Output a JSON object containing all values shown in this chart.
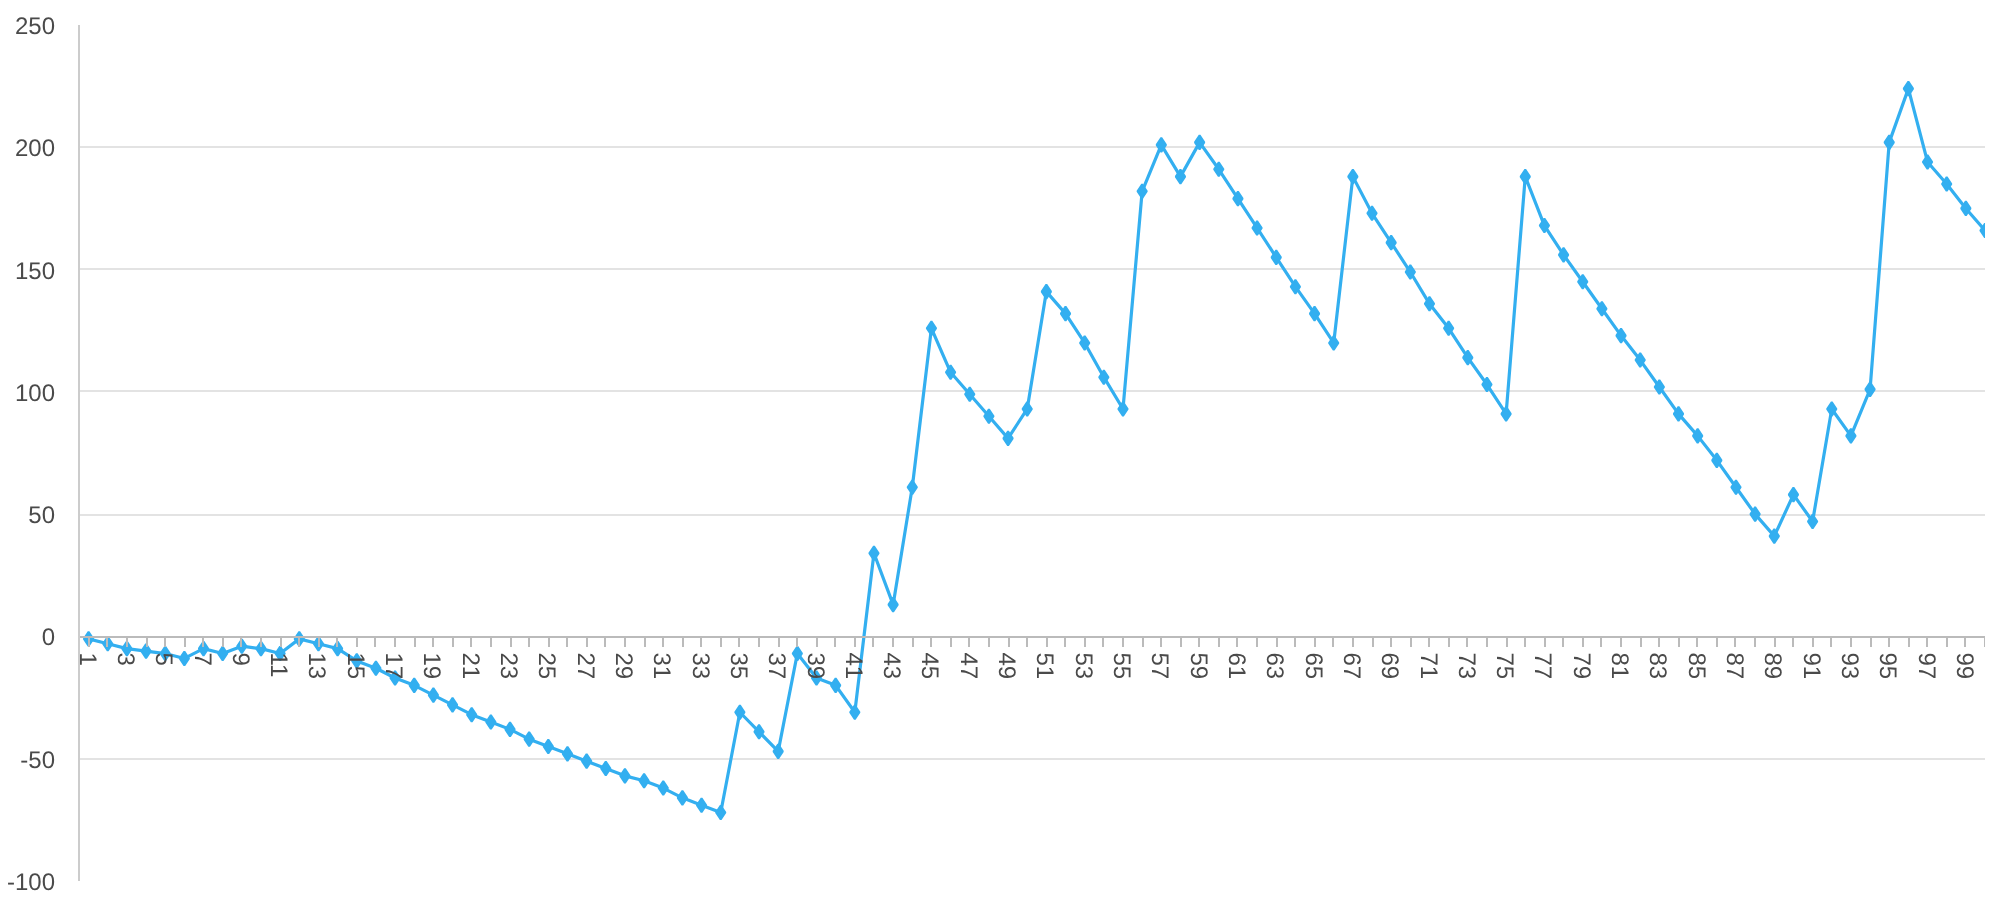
{
  "chart_data": {
    "type": "line",
    "categories": [
      "1",
      null,
      "3",
      null,
      "5",
      null,
      "7",
      null,
      "9",
      null,
      "11",
      null,
      "13",
      null,
      "15",
      null,
      "17",
      null,
      "19",
      null,
      "21",
      null,
      "23",
      null,
      "25",
      null,
      "27",
      null,
      "29",
      null,
      "31",
      null,
      "33",
      null,
      "35",
      null,
      "37",
      null,
      "39",
      null,
      "41",
      null,
      "43",
      null,
      "45",
      null,
      "47",
      null,
      "49",
      null,
      "51",
      null,
      "53",
      null,
      "55",
      null,
      "57",
      null,
      "59",
      null,
      "61",
      null,
      "63",
      null,
      "65",
      null,
      "67",
      null,
      "69",
      null,
      "71",
      null,
      "73",
      null,
      "75",
      null,
      "77",
      null,
      "79",
      null,
      "81",
      null,
      "83",
      null,
      "85",
      null,
      "87",
      null,
      "89",
      null,
      "91",
      null,
      "93",
      null,
      "95",
      null,
      "97",
      null,
      "99",
      null
    ],
    "series": [
      {
        "color": "#33aff0",
        "values": [
          -1,
          -3,
          -5,
          -6,
          -7,
          -9,
          -5,
          -7,
          -4,
          -5,
          -7,
          -1,
          -3,
          -5,
          -10,
          -13,
          -17,
          -20,
          -24,
          -28,
          -32,
          -35,
          -38,
          -42,
          -45,
          -48,
          -51,
          -54,
          -57,
          -59,
          -62,
          -66,
          -69,
          -72,
          -31,
          -39,
          -47,
          -7,
          -17,
          -20,
          -31,
          34,
          13,
          61,
          126,
          108,
          99,
          90,
          81,
          93,
          141,
          132,
          120,
          106,
          93,
          182,
          201,
          188,
          202,
          191,
          179,
          167,
          155,
          143,
          132,
          120,
          188,
          173,
          161,
          149,
          136,
          126,
          114,
          103,
          91,
          188,
          168,
          156,
          145,
          134,
          123,
          113,
          102,
          91,
          82,
          72,
          61,
          50,
          41,
          58,
          47,
          93,
          82,
          101,
          202,
          224,
          194,
          185,
          175,
          166
        ]
      }
    ],
    "ylim": [
      -100,
      250
    ],
    "yticks": [
      -100,
      -50,
      0,
      50,
      100,
      150,
      200,
      250
    ],
    "grid": "y",
    "marker": "diamond",
    "line_style": "solid"
  }
}
